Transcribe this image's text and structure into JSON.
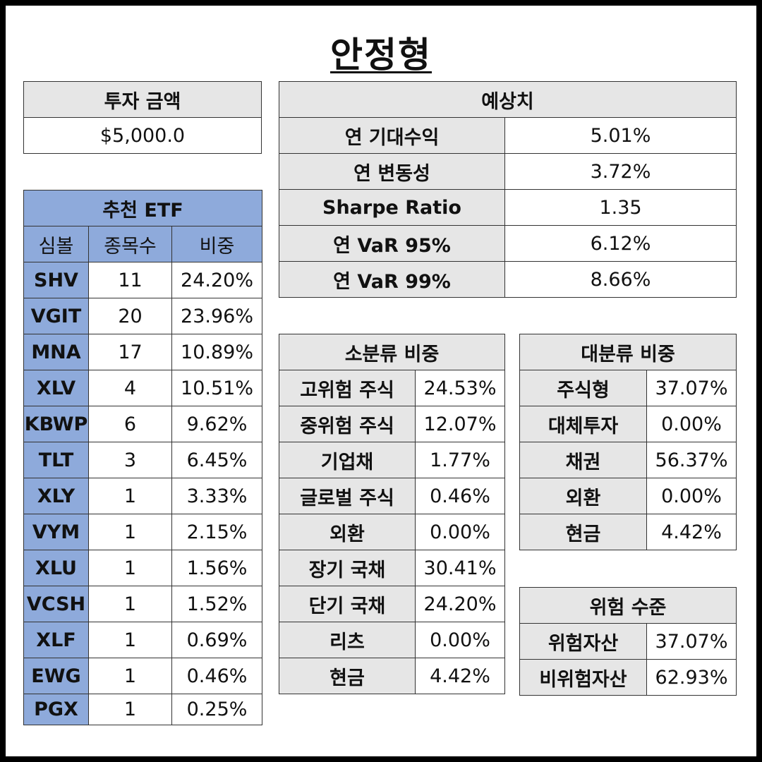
{
  "title": "안정형",
  "investment": {
    "header": "투자 금액",
    "amount": "$5,000.0"
  },
  "etf": {
    "header": "추천 ETF",
    "columns": [
      "심볼",
      "종목수",
      "비중"
    ],
    "rows": [
      {
        "symbol": "SHV",
        "count": "11",
        "weight": "24.20%"
      },
      {
        "symbol": "VGIT",
        "count": "20",
        "weight": "23.96%"
      },
      {
        "symbol": "MNA",
        "count": "17",
        "weight": "10.89%"
      },
      {
        "symbol": "XLV",
        "count": "4",
        "weight": "10.51%"
      },
      {
        "symbol": "KBWP",
        "count": "6",
        "weight": "9.62%"
      },
      {
        "symbol": "TLT",
        "count": "3",
        "weight": "6.45%"
      },
      {
        "symbol": "XLY",
        "count": "1",
        "weight": "3.33%"
      },
      {
        "symbol": "VYM",
        "count": "1",
        "weight": "2.15%"
      },
      {
        "symbol": "XLU",
        "count": "1",
        "weight": "1.56%"
      },
      {
        "symbol": "VCSH",
        "count": "1",
        "weight": "1.52%"
      },
      {
        "symbol": "XLF",
        "count": "1",
        "weight": "0.69%"
      },
      {
        "symbol": "EWG",
        "count": "1",
        "weight": "0.46%"
      },
      {
        "symbol": "PGX",
        "count": "1",
        "weight": "0.25%"
      }
    ]
  },
  "forecast": {
    "header": "예상치",
    "rows": [
      {
        "label": "연 기대수익",
        "value": "5.01%"
      },
      {
        "label": "연 변동성",
        "value": "3.72%"
      },
      {
        "label": "Sharpe Ratio",
        "value": "1.35"
      },
      {
        "label": "연 VaR 95%",
        "value": "6.12%"
      },
      {
        "label": "연 VaR 99%",
        "value": "8.66%"
      }
    ]
  },
  "sub_category": {
    "header": "소분류 비중",
    "rows": [
      {
        "label": "고위험 주식",
        "value": "24.53%"
      },
      {
        "label": "중위험 주식",
        "value": "12.07%"
      },
      {
        "label": "기업채",
        "value": "1.77%"
      },
      {
        "label": "글로벌 주식",
        "value": "0.46%"
      },
      {
        "label": "외환",
        "value": "0.00%"
      },
      {
        "label": "장기 국채",
        "value": "30.41%"
      },
      {
        "label": "단기 국채",
        "value": "24.20%"
      },
      {
        "label": "리츠",
        "value": "0.00%"
      },
      {
        "label": "현금",
        "value": "4.42%"
      }
    ]
  },
  "main_category": {
    "header": "대분류 비중",
    "rows": [
      {
        "label": "주식형",
        "value": "37.07%"
      },
      {
        "label": "대체투자",
        "value": "0.00%"
      },
      {
        "label": "채권",
        "value": "56.37%"
      },
      {
        "label": "외환",
        "value": "0.00%"
      },
      {
        "label": "현금",
        "value": "4.42%"
      }
    ]
  },
  "risk": {
    "header": "위험 수준",
    "rows": [
      {
        "label": "위험자산",
        "value": "37.07%"
      },
      {
        "label": "비위험자산",
        "value": "62.93%"
      }
    ]
  },
  "colors": {
    "header_gray": "#e6e6e6",
    "etf_blue": "#8eaadb"
  }
}
